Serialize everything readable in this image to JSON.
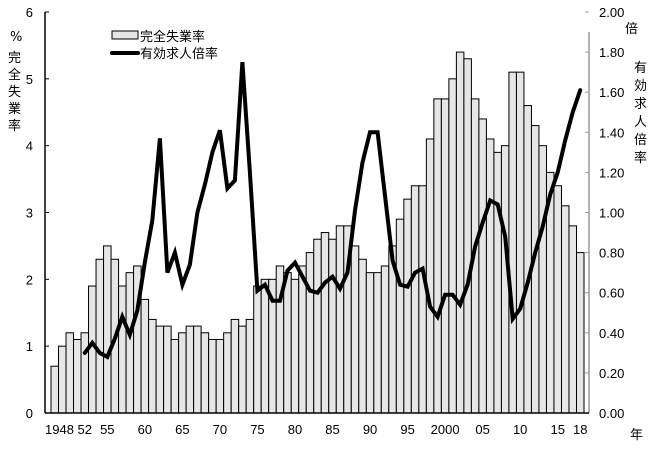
{
  "chart_data": {
    "type": "bar+line",
    "title": "",
    "x_label": "年",
    "categories": [
      1948,
      1949,
      1950,
      1951,
      1952,
      1953,
      1954,
      1955,
      1956,
      1957,
      1958,
      1959,
      1960,
      1961,
      1962,
      1963,
      1964,
      1965,
      1966,
      1967,
      1968,
      1969,
      1970,
      1971,
      1972,
      1973,
      1974,
      1975,
      1976,
      1977,
      1978,
      1979,
      1980,
      1981,
      1982,
      1983,
      1984,
      1985,
      1986,
      1987,
      1988,
      1989,
      1990,
      1991,
      1992,
      1993,
      1994,
      1995,
      1996,
      1997,
      1998,
      1999,
      2000,
      2001,
      2002,
      2003,
      2004,
      2005,
      2006,
      2007,
      2008,
      2009,
      2010,
      2011,
      2012,
      2013,
      2014,
      2015,
      2016,
      2017,
      2018
    ],
    "x_tick_labels": [
      {
        "year": 1948,
        "label": "1948"
      },
      {
        "year": 1952,
        "label": "52"
      },
      {
        "year": 1955,
        "label": "55"
      },
      {
        "year": 1960,
        "label": "60"
      },
      {
        "year": 1965,
        "label": "65"
      },
      {
        "year": 1970,
        "label": "70"
      },
      {
        "year": 1975,
        "label": "75"
      },
      {
        "year": 1980,
        "label": "80"
      },
      {
        "year": 1985,
        "label": "85"
      },
      {
        "year": 1990,
        "label": "90"
      },
      {
        "year": 1995,
        "label": "95"
      },
      {
        "year": 2000,
        "label": "2000"
      },
      {
        "year": 2005,
        "label": "05"
      },
      {
        "year": 2010,
        "label": "10"
      },
      {
        "year": 2015,
        "label": "15"
      },
      {
        "year": 2018,
        "label": "18"
      }
    ],
    "series": [
      {
        "name": "完全失業率",
        "type": "bar",
        "axis": "left",
        "color": "#e6e6e6",
        "edge_color": "#000000",
        "values": [
          0.7,
          1.0,
          1.2,
          1.1,
          1.2,
          1.9,
          2.3,
          2.5,
          2.3,
          1.9,
          2.1,
          2.2,
          1.7,
          1.4,
          1.3,
          1.3,
          1.1,
          1.2,
          1.3,
          1.3,
          1.2,
          1.1,
          1.1,
          1.2,
          1.4,
          1.3,
          1.4,
          1.9,
          2.0,
          2.0,
          2.2,
          2.1,
          2.0,
          2.2,
          2.4,
          2.6,
          2.7,
          2.6,
          2.8,
          2.8,
          2.5,
          2.3,
          2.1,
          2.1,
          2.2,
          2.5,
          2.9,
          3.2,
          3.4,
          3.4,
          4.1,
          4.7,
          4.7,
          5.0,
          5.4,
          5.3,
          4.7,
          4.4,
          4.1,
          3.9,
          4.0,
          5.1,
          5.1,
          4.6,
          4.3,
          4.0,
          3.6,
          3.4,
          3.1,
          2.8,
          2.4
        ]
      },
      {
        "name": "有効求人倍率",
        "type": "line",
        "axis": "right",
        "color": "#000000",
        "start_year": 1952,
        "values": [
          0.3,
          0.35,
          0.3,
          0.28,
          0.37,
          0.48,
          0.39,
          0.51,
          0.75,
          0.96,
          1.37,
          0.7,
          0.8,
          0.64,
          0.74,
          1.0,
          1.14,
          1.3,
          1.41,
          1.12,
          1.16,
          1.75,
          1.2,
          0.61,
          0.64,
          0.56,
          0.56,
          0.71,
          0.75,
          0.68,
          0.61,
          0.6,
          0.65,
          0.68,
          0.62,
          0.7,
          1.01,
          1.25,
          1.4,
          1.4,
          1.08,
          0.76,
          0.64,
          0.63,
          0.7,
          0.72,
          0.53,
          0.48,
          0.59,
          0.59,
          0.54,
          0.64,
          0.83,
          0.95,
          1.06,
          1.04,
          0.88,
          0.47,
          0.52,
          0.65,
          0.8,
          0.93,
          1.09,
          1.2,
          1.36,
          1.5,
          1.61
        ]
      }
    ],
    "left_axis": {
      "title": "完全失業率",
      "unit": "%",
      "ylim": [
        0,
        6
      ],
      "ticks": [
        0,
        1,
        2,
        3,
        4,
        5,
        6
      ],
      "tick_labels": [
        "0",
        "1",
        "2",
        "3",
        "4",
        "5",
        "6"
      ]
    },
    "right_axis": {
      "title": "有効求人倍率",
      "unit": "倍",
      "ylim": [
        0.0,
        2.0
      ],
      "ticks": [
        0.0,
        0.2,
        0.4,
        0.6,
        0.8,
        1.0,
        1.2,
        1.4,
        1.6,
        1.8,
        2.0
      ],
      "tick_labels": [
        "0.00",
        "0.20",
        "0.40",
        "0.60",
        "0.80",
        "1.00",
        "1.20",
        "1.40",
        "1.60",
        "1.80",
        "2.00"
      ]
    },
    "legend": {
      "position": "upper-left-inside",
      "entries": [
        "完全失業率",
        "有効求人倍率"
      ]
    },
    "grid": false
  },
  "labels": {
    "left_unit": "%",
    "left_title_chars": [
      "完",
      "全",
      "失",
      "業",
      "率"
    ],
    "right_unit": "倍",
    "right_title_chars": [
      "有",
      "効",
      "求",
      "人",
      "倍",
      "率"
    ],
    "x_unit": "年",
    "legend_bar": "完全失業率",
    "legend_line": "有効求人倍率"
  }
}
